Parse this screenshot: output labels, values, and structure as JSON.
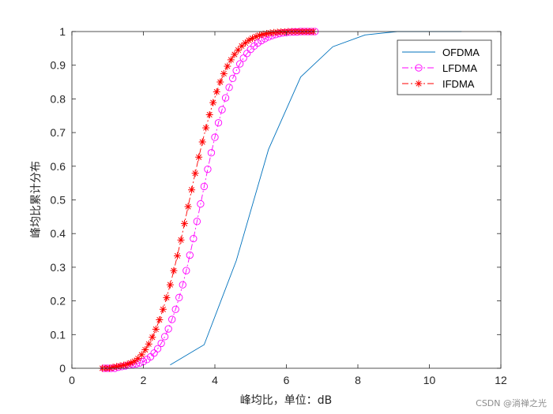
{
  "chart_data": {
    "type": "line",
    "title": "",
    "xlabel": "峰均比，单位：dB",
    "ylabel": "峰均比累计分布",
    "xlim": [
      0,
      12
    ],
    "ylim": [
      0,
      1
    ],
    "xticks": [
      "0",
      "2",
      "4",
      "6",
      "8",
      "10",
      "12"
    ],
    "yticks": [
      "0",
      "0.1",
      "0.2",
      "0.3",
      "0.4",
      "0.5",
      "0.6",
      "0.7",
      "0.8",
      "0.9",
      "1"
    ],
    "grid": false,
    "legend_position": "top-right",
    "series": [
      {
        "name": "OFDMA",
        "color": "#0072bd",
        "line_style": "solid",
        "marker": "none",
        "x": [
          2.75,
          3.7,
          4.6,
          5.5,
          6.4,
          7.3,
          8.2,
          9.1,
          10.0,
          10.9
        ],
        "y": [
          0.01,
          0.07,
          0.32,
          0.65,
          0.865,
          0.955,
          0.99,
          1.0,
          1.0,
          1.0
        ]
      },
      {
        "name": "LFDMA",
        "color": "#ff00ff",
        "line_style": "dashdot",
        "marker": "circle",
        "x": [
          0.9,
          1.0,
          1.1,
          1.2,
          1.3,
          1.4,
          1.5,
          1.6,
          1.7,
          1.8,
          1.9,
          2.0,
          2.1,
          2.2,
          2.3,
          2.4,
          2.5,
          2.6,
          2.7,
          2.8,
          2.9,
          3.0,
          3.1,
          3.2,
          3.3,
          3.4,
          3.5,
          3.6,
          3.7,
          3.8,
          3.9,
          4.0,
          4.1,
          4.2,
          4.3,
          4.4,
          4.5,
          4.6,
          4.7,
          4.8,
          4.9,
          5.0,
          5.1,
          5.2,
          5.3,
          5.4,
          5.5,
          5.6,
          5.7,
          5.8,
          5.9,
          6.0,
          6.1,
          6.2,
          6.3,
          6.4,
          6.5,
          6.6,
          6.7,
          6.8
        ],
        "y": [
          0.0,
          0.0,
          0.0,
          0.0,
          0.003,
          0.005,
          0.007,
          0.009,
          0.011,
          0.013,
          0.016,
          0.02,
          0.026,
          0.034,
          0.045,
          0.058,
          0.074,
          0.094,
          0.117,
          0.145,
          0.175,
          0.21,
          0.248,
          0.29,
          0.336,
          0.385,
          0.436,
          0.488,
          0.54,
          0.591,
          0.64,
          0.686,
          0.729,
          0.768,
          0.803,
          0.834,
          0.861,
          0.884,
          0.904,
          0.921,
          0.935,
          0.947,
          0.957,
          0.966,
          0.973,
          0.979,
          0.984,
          0.988,
          0.991,
          0.994,
          0.996,
          0.997,
          0.998,
          0.999,
          0.999,
          1.0,
          1.0,
          1.0,
          1.0,
          1.0
        ]
      },
      {
        "name": "IFDMA",
        "color": "#ff0000",
        "line_style": "dashdot",
        "marker": "asterisk",
        "x": [
          0.85,
          0.95,
          1.05,
          1.15,
          1.25,
          1.35,
          1.45,
          1.55,
          1.65,
          1.75,
          1.85,
          1.95,
          2.05,
          2.15,
          2.25,
          2.35,
          2.45,
          2.55,
          2.65,
          2.75,
          2.85,
          2.95,
          3.05,
          3.15,
          3.25,
          3.35,
          3.45,
          3.55,
          3.65,
          3.75,
          3.85,
          3.95,
          4.05,
          4.15,
          4.25,
          4.35,
          4.45,
          4.55,
          4.65,
          4.75,
          4.85,
          4.95,
          5.05,
          5.15,
          5.25,
          5.35,
          5.45,
          5.55,
          5.65,
          5.75,
          5.85,
          5.95,
          6.05,
          6.15,
          6.25,
          6.35,
          6.45,
          6.55,
          6.65,
          6.75
        ],
        "y": [
          0.0,
          0.0,
          0.0,
          0.003,
          0.005,
          0.007,
          0.009,
          0.012,
          0.016,
          0.021,
          0.029,
          0.04,
          0.055,
          0.072,
          0.092,
          0.116,
          0.144,
          0.175,
          0.21,
          0.248,
          0.29,
          0.334,
          0.381,
          0.43,
          0.48,
          0.53,
          0.579,
          0.627,
          0.672,
          0.714,
          0.753,
          0.789,
          0.821,
          0.85,
          0.875,
          0.897,
          0.916,
          0.932,
          0.945,
          0.957,
          0.966,
          0.974,
          0.98,
          0.985,
          0.989,
          0.992,
          0.994,
          0.996,
          0.997,
          0.998,
          0.999,
          0.999,
          1.0,
          1.0,
          1.0,
          1.0,
          1.0,
          1.0,
          1.0,
          1.0
        ]
      }
    ]
  },
  "watermark": "CSDN @淌禅之光"
}
